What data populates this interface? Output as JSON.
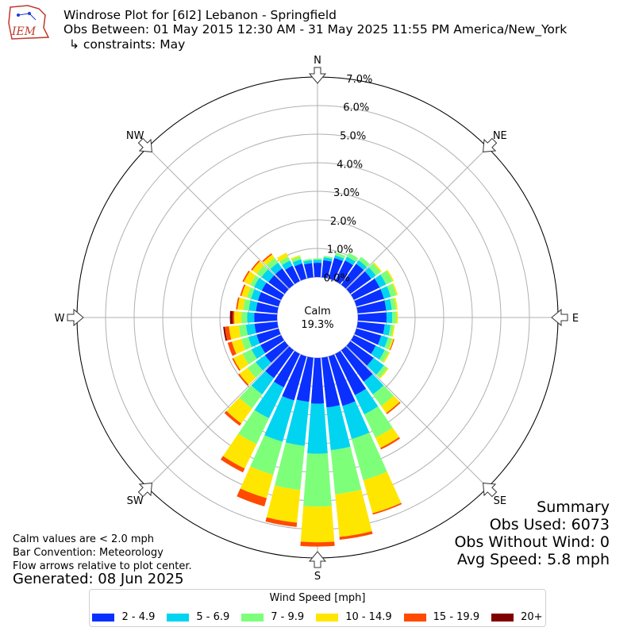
{
  "header": {
    "logo_text": "IEM",
    "title": "Windrose Plot for [6I2] Lebanon - Springfield",
    "obs_between": "Obs Between: 01 May 2015 12:30 AM - 31 May 2025 11:55 PM America/New_York",
    "constraints": "↳ constraints: May"
  },
  "notes": {
    "calm_note": "Calm values are < 2.0 mph",
    "bar_convention": "Bar Convention: Meteorology",
    "flow_arrows": "Flow arrows relative to plot center.",
    "generated": "Generated: 08 Jun 2025"
  },
  "summary": {
    "title": "Summary",
    "obs_used": "Obs Used: 6073",
    "obs_without_wind": "Obs Without Wind: 0",
    "avg_speed": "Avg Speed: 5.8 mph"
  },
  "legend": {
    "title": "Wind Speed [mph]",
    "items": [
      {
        "label": "2 - 4.9",
        "color": "#0a30ff"
      },
      {
        "label": "5 - 6.9",
        "color": "#00d4f0"
      },
      {
        "label": "7 - 9.9",
        "color": "#7dff7a"
      },
      {
        "label": "10 - 14.9",
        "color": "#ffe600"
      },
      {
        "label": "15 - 19.9",
        "color": "#ff4a00"
      },
      {
        "label": "20+",
        "color": "#800000"
      }
    ]
  },
  "chart_data": {
    "type": "windrose",
    "calm_label": "Calm",
    "calm_percent": "19.3%",
    "calm_value": 19.3,
    "compass_labels": [
      "N",
      "NE",
      "E",
      "SE",
      "S",
      "SW",
      "W",
      "NW"
    ],
    "radial_ticks": [
      "0.0%",
      "1.0%",
      "2.0%",
      "3.0%",
      "4.0%",
      "5.0%",
      "6.0%",
      "7.0%"
    ],
    "rmax": 7.0,
    "speed_bins": [
      "2 - 4.9",
      "5 - 6.9",
      "7 - 9.9",
      "10 - 14.9",
      "15 - 19.9",
      "20+"
    ],
    "colors": [
      "#0a30ff",
      "#00d4f0",
      "#7dff7a",
      "#ffe600",
      "#ff4a00",
      "#800000"
    ],
    "directions": [
      0,
      10,
      20,
      30,
      40,
      50,
      60,
      70,
      80,
      90,
      100,
      110,
      120,
      130,
      140,
      150,
      160,
      170,
      180,
      190,
      200,
      210,
      220,
      230,
      240,
      250,
      260,
      270,
      280,
      290,
      300,
      310,
      320,
      330,
      340,
      350
    ],
    "values": [
      [
        0.5,
        0.1,
        0.05,
        0.0,
        0.0,
        0.0
      ],
      [
        0.6,
        0.1,
        0.05,
        0.0,
        0.0,
        0.0
      ],
      [
        0.75,
        0.1,
        0.1,
        0.0,
        0.0,
        0.0
      ],
      [
        0.8,
        0.15,
        0.15,
        0.0,
        0.0,
        0.0
      ],
      [
        0.9,
        0.15,
        0.15,
        0.0,
        0.0,
        0.0
      ],
      [
        0.9,
        0.2,
        0.2,
        0.05,
        0.0,
        0.0
      ],
      [
        1.0,
        0.25,
        0.25,
        0.05,
        0.0,
        0.0
      ],
      [
        1.0,
        0.25,
        0.2,
        0.05,
        0.0,
        0.0
      ],
      [
        1.0,
        0.2,
        0.15,
        0.05,
        0.0,
        0.0
      ],
      [
        1.0,
        0.2,
        0.15,
        0.05,
        0.0,
        0.0
      ],
      [
        0.95,
        0.2,
        0.1,
        0.05,
        0.0,
        0.0
      ],
      [
        0.9,
        0.25,
        0.15,
        0.05,
        0.03,
        0.0
      ],
      [
        0.85,
        0.35,
        0.15,
        0.05,
        0.0,
        0.0
      ],
      [
        1.0,
        0.45,
        0.15,
        0.05,
        0.0,
        0.0
      ],
      [
        1.35,
        0.55,
        0.5,
        0.3,
        0.05,
        0.0
      ],
      [
        1.6,
        0.75,
        0.9,
        0.4,
        0.06,
        0.0
      ],
      [
        1.8,
        1.2,
        1.5,
        1.2,
        0.05,
        0.0
      ],
      [
        1.75,
        1.5,
        1.55,
        1.5,
        0.1,
        0.0
      ],
      [
        1.6,
        1.75,
        1.85,
        1.25,
        0.15,
        0.0
      ],
      [
        1.55,
        1.55,
        1.55,
        1.15,
        0.15,
        0.0
      ],
      [
        1.6,
        1.5,
        1.2,
        0.85,
        0.3,
        0.0
      ],
      [
        1.3,
        1.2,
        1.0,
        0.95,
        0.15,
        0.0
      ],
      [
        1.2,
        0.7,
        0.6,
        0.65,
        0.1,
        0.0
      ],
      [
        0.85,
        0.4,
        0.35,
        0.35,
        0.05,
        0.0
      ],
      [
        0.8,
        0.35,
        0.35,
        0.35,
        0.05,
        0.0
      ],
      [
        0.8,
        0.3,
        0.25,
        0.35,
        0.15,
        0.0
      ],
      [
        0.8,
        0.3,
        0.25,
        0.35,
        0.15,
        0.05
      ],
      [
        0.8,
        0.25,
        0.2,
        0.25,
        0.05,
        0.1
      ],
      [
        0.75,
        0.25,
        0.2,
        0.2,
        0.05,
        0.0
      ],
      [
        0.75,
        0.25,
        0.15,
        0.2,
        0.05,
        0.0
      ],
      [
        0.75,
        0.3,
        0.15,
        0.25,
        0.05,
        0.0
      ],
      [
        0.7,
        0.3,
        0.2,
        0.2,
        0.05,
        0.0
      ],
      [
        0.7,
        0.25,
        0.2,
        0.15,
        0.05,
        0.0
      ],
      [
        0.6,
        0.2,
        0.15,
        0.15,
        0.0,
        0.0
      ],
      [
        0.55,
        0.15,
        0.1,
        0.05,
        0.0,
        0.0
      ],
      [
        0.5,
        0.1,
        0.05,
        0.0,
        0.0,
        0.0
      ]
    ]
  }
}
